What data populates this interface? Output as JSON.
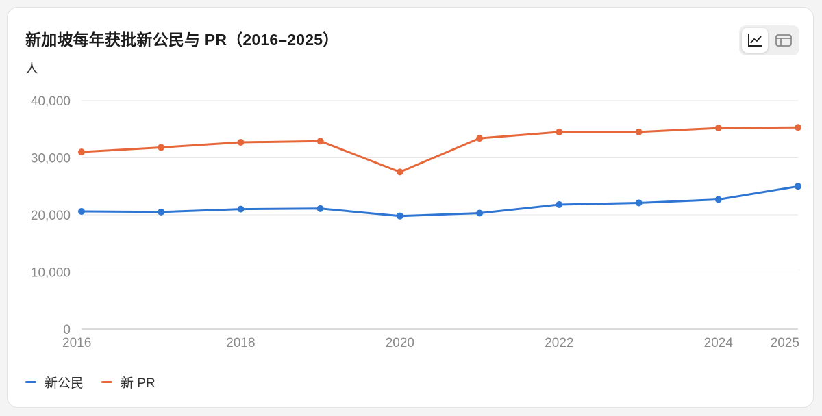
{
  "title": "新加坡每年获批新公民与 PR（2016–2025）",
  "unit": "人",
  "view_toggle": {
    "active": "chart-icon",
    "inactive": "table-icon"
  },
  "colors": {
    "citizen": "#2f76d2",
    "pr": "#e5673a",
    "grid": "#e6e6e6",
    "axis": "#cfcfcf",
    "tick": "#8a8a8a"
  },
  "legend": [
    {
      "label": "新公民",
      "color": "#2f76d2"
    },
    {
      "label": "新 PR",
      "color": "#e5673a"
    }
  ],
  "chart_data": {
    "type": "line",
    "title": "新加坡每年获批新公民与 PR（2016–2025）",
    "ylabel": "人",
    "x": [
      2016,
      2017,
      2018,
      2019,
      2020,
      2021,
      2022,
      2023,
      2024,
      2025
    ],
    "xlim": [
      2016,
      2025
    ],
    "x_ticks": [
      "2016",
      "2018",
      "2020",
      "2022",
      "2024",
      "2025"
    ],
    "ylim": [
      0,
      40000
    ],
    "y_ticks": [
      "0",
      "10,000",
      "20,000",
      "30,000",
      "40,000"
    ],
    "grid": true,
    "legend_position": "bottom-left",
    "series": [
      {
        "name": "新公民",
        "color": "#2f76d2",
        "values": [
          20600,
          20500,
          21000,
          21100,
          19800,
          20300,
          21800,
          22100,
          22700,
          25000
        ]
      },
      {
        "name": "新 PR",
        "color": "#e5673a",
        "values": [
          31000,
          31800,
          32700,
          32900,
          27500,
          33400,
          34500,
          34500,
          35200,
          35300
        ]
      }
    ]
  }
}
